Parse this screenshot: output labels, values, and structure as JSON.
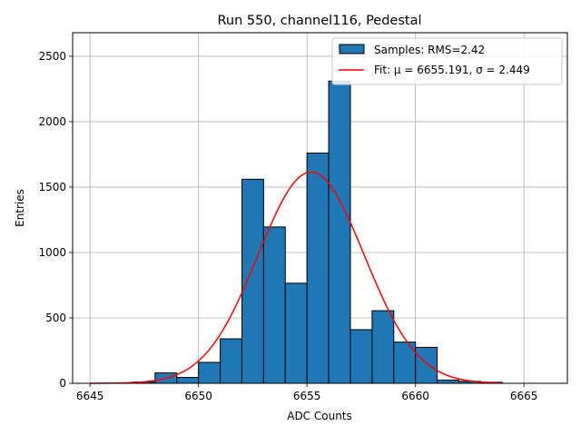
{
  "chart_data": {
    "type": "bar",
    "title": "Run 550, channel116, Pedestal",
    "xlabel": "ADC Counts",
    "ylabel": "Entries",
    "xlim": [
      6644.2,
      6667.0
    ],
    "ylim": [
      0,
      2680
    ],
    "xticks": [
      6645,
      6650,
      6655,
      6660,
      6665
    ],
    "yticks": [
      0,
      500,
      1000,
      1500,
      2000,
      2500
    ],
    "grid": true,
    "legend_position": "upper-right",
    "histogram": {
      "name": "Samples: RMS=2.42",
      "bin_edges": [
        6647,
        6648,
        6649,
        6650,
        6651,
        6652,
        6653,
        6654,
        6655,
        6656,
        6657,
        6658,
        6659,
        6660,
        6661,
        6662,
        6663,
        6664
      ],
      "counts": [
        10,
        80,
        45,
        160,
        340,
        1560,
        1195,
        765,
        1760,
        2310,
        410,
        555,
        315,
        275,
        25,
        15,
        8
      ],
      "color": "#1f77b4",
      "edge_color": "#000000"
    },
    "fit": {
      "name": "Fit: μ = 6655.191, σ = 2.449",
      "mu": 6655.191,
      "sigma": 2.449,
      "amplitude": 1615,
      "x_range": [
        6645,
        6664
      ],
      "color": "#ff0000"
    }
  }
}
